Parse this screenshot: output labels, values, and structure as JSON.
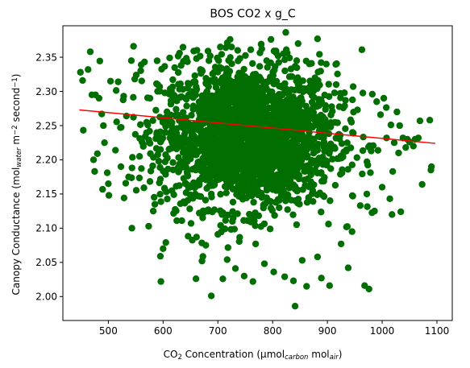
{
  "chart_data": {
    "type": "scatter",
    "title": "BOS CO2 x g_C",
    "xlabel": {
      "parts": [
        {
          "text": "CO",
          "style": "normal"
        },
        {
          "text": "2",
          "style": "sub"
        },
        {
          "text": " Concentration (μmol",
          "style": "normal"
        },
        {
          "text": "carbon",
          "style": "sub-italic"
        },
        {
          "text": " mol",
          "style": "normal"
        },
        {
          "text": "air",
          "style": "sub-italic"
        },
        {
          "text": ")",
          "style": "normal"
        }
      ]
    },
    "ylabel": {
      "parts": [
        {
          "text": "Canopy Conductance (mol",
          "style": "normal"
        },
        {
          "text": "water",
          "style": "sub-italic"
        },
        {
          "text": " m",
          "style": "normal"
        },
        {
          "text": "−2",
          "style": "sup"
        },
        {
          "text": " second",
          "style": "normal"
        },
        {
          "text": "−1",
          "style": "sup"
        },
        {
          "text": ")",
          "style": "normal"
        }
      ]
    },
    "xlim": [
      417,
      1128
    ],
    "ylim": [
      1.965,
      2.396
    ],
    "xticks": [
      500,
      600,
      700,
      800,
      900,
      1000,
      1100
    ],
    "yticks": [
      2.0,
      2.05,
      2.1,
      2.15,
      2.2,
      2.25,
      2.3,
      2.35
    ],
    "xtick_labels": [
      "500",
      "600",
      "700",
      "800",
      "900",
      "1000",
      "1100"
    ],
    "ytick_labels": [
      "2.00",
      "2.05",
      "2.10",
      "2.15",
      "2.20",
      "2.25",
      "2.30",
      "2.35"
    ],
    "grid": false,
    "series": [
      {
        "kind": "points",
        "color": "#006e00",
        "points": [
          [
            449,
            2.328
          ],
          [
            453,
            2.316
          ],
          [
            463,
            2.332
          ],
          [
            467,
            2.358
          ],
          [
            470,
            2.295
          ],
          [
            473,
            2.2
          ],
          [
            475,
            2.183
          ],
          [
            480,
            2.209
          ],
          [
            483,
            2.29
          ],
          [
            488,
            2.267
          ],
          [
            491,
            2.25
          ],
          [
            493,
            2.225
          ],
          [
            498,
            2.181
          ],
          [
            500,
            2.165
          ],
          [
            501,
            2.148
          ],
          [
            504,
            2.315
          ],
          [
            513,
            2.214
          ],
          [
            518,
            2.314
          ],
          [
            523,
            2.19
          ],
          [
            528,
            2.293
          ],
          [
            533,
            2.264
          ],
          [
            537,
            2.175
          ],
          [
            542,
            2.345
          ],
          [
            543,
            2.1
          ],
          [
            546,
            2.366
          ],
          [
            551,
            2.324
          ],
          [
            557,
            2.205
          ],
          [
            560,
            2.339
          ],
          [
            565,
            2.159
          ],
          [
            566,
            2.343
          ],
          [
            572,
            2.251
          ],
          [
            576,
            2.29
          ],
          [
            582,
            2.125
          ],
          [
            585,
            2.135
          ],
          [
            590,
            2.31
          ],
          [
            595,
            2.059
          ],
          [
            596,
            2.022
          ],
          [
            600,
            2.07
          ],
          [
            605,
            2.079
          ],
          [
            612,
            2.349
          ],
          [
            618,
            2.196
          ],
          [
            625,
            2.111
          ],
          [
            630,
            2.356
          ],
          [
            637,
            2.344
          ],
          [
            641,
            2.29
          ],
          [
            651,
            2.107
          ],
          [
            656,
            2.359
          ],
          [
            660,
            2.026
          ],
          [
            661,
            2.087
          ],
          [
            671,
            2.052
          ],
          [
            678,
            2.075
          ],
          [
            682,
            2.359
          ],
          [
            688,
            2.001
          ],
          [
            700,
            2.091
          ],
          [
            705,
            2.104
          ],
          [
            717,
            2.054
          ],
          [
            725,
            2.365
          ],
          [
            732,
            2.041
          ],
          [
            748,
            2.03
          ],
          [
            760,
            2.361
          ],
          [
            764,
            2.022
          ],
          [
            769,
            2.077
          ],
          [
            779,
            2.369
          ],
          [
            785,
            2.048
          ],
          [
            797,
            2.376
          ],
          [
            802,
            2.036
          ],
          [
            810,
            2.352
          ],
          [
            822,
            2.029
          ],
          [
            825,
            2.361
          ],
          [
            838,
            2.023
          ],
          [
            841,
            1.986
          ],
          [
            844,
            2.345
          ],
          [
            854,
            2.053
          ],
          [
            862,
            2.015
          ],
          [
            871,
            2.341
          ],
          [
            882,
            2.058
          ],
          [
            889,
            2.027
          ],
          [
            898,
            2.34
          ],
          [
            902,
            2.106
          ],
          [
            904,
            2.016
          ],
          [
            916,
            2.31
          ],
          [
            925,
            2.077
          ],
          [
            931,
            2.298
          ],
          [
            938,
            2.042
          ],
          [
            945,
            2.095
          ],
          [
            947,
            2.307
          ],
          [
            960,
            2.133
          ],
          [
            963,
            2.361
          ],
          [
            968,
            2.016
          ],
          [
            972,
            2.15
          ],
          [
            976,
            2.011
          ],
          [
            982,
            2.296
          ],
          [
            986,
            2.125
          ],
          [
            990,
            2.285
          ],
          [
            997,
            2.266
          ],
          [
            1000,
            2.16
          ],
          [
            1003,
            2.29
          ],
          [
            1008,
            2.232
          ],
          [
            1014,
            2.143
          ],
          [
            1016,
            2.251
          ],
          [
            1018,
            2.12
          ],
          [
            1022,
            2.225
          ],
          [
            1027,
            2.27
          ],
          [
            1030,
            2.21
          ],
          [
            1032,
            2.25
          ],
          [
            1034,
            2.124
          ],
          [
            1038,
            2.232
          ],
          [
            1043,
            2.218
          ],
          [
            1046,
            2.23
          ],
          [
            1050,
            2.226
          ],
          [
            1057,
            2.22
          ],
          [
            1060,
            2.23
          ],
          [
            1066,
            2.232
          ],
          [
            1069,
            2.257
          ],
          [
            1073,
            2.164
          ],
          [
            1087,
            2.258
          ],
          [
            1089,
            2.185
          ],
          [
            1090,
            2.19
          ]
        ]
      },
      {
        "kind": "cloud",
        "color": "#006e00",
        "center_x": 755,
        "center_y": 2.235,
        "spread_x": 80,
        "spread_y": 0.052,
        "count": 2400
      },
      {
        "kind": "trend-line",
        "color": "#ff0000",
        "x": [
          447,
          1097
        ],
        "y": [
          2.273,
          2.224
        ]
      }
    ]
  }
}
